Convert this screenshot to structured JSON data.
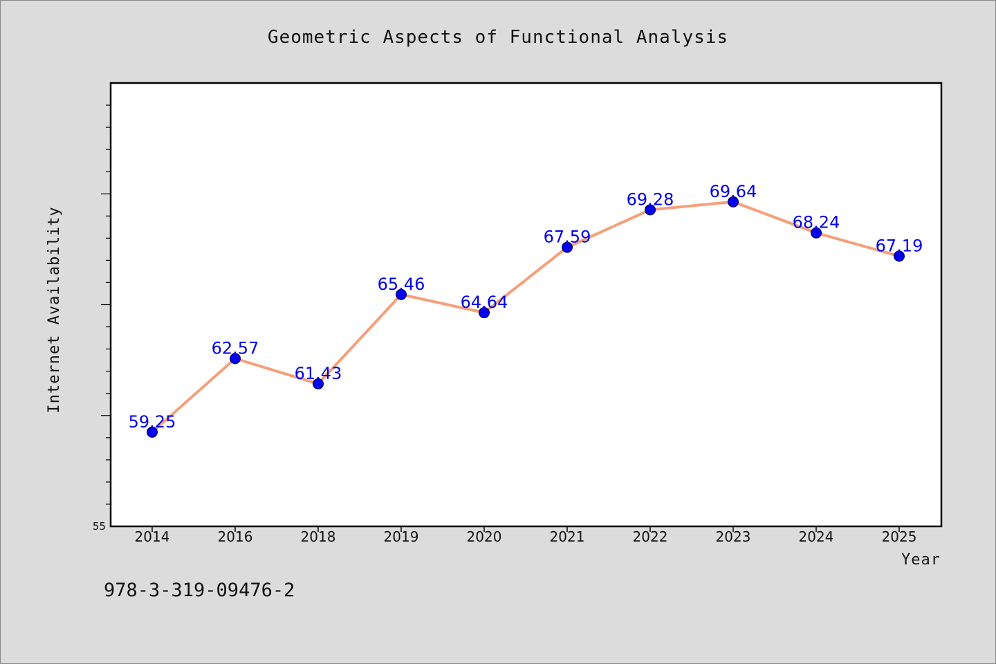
{
  "chart_data": {
    "type": "line",
    "title": "Geometric Aspects of Functional Analysis",
    "xlabel": "Year",
    "ylabel": "Internet Availability",
    "categories": [
      "2014",
      "2016",
      "2018",
      "2019",
      "2020",
      "2021",
      "2022",
      "2023",
      "2024",
      "2025"
    ],
    "series": [
      {
        "values": [
          59.25,
          62.57,
          61.43,
          65.46,
          64.64,
          67.59,
          69.28,
          69.64,
          68.24,
          67.19
        ],
        "labels": [
          "59.25",
          "62.57",
          "61.43",
          "65.46",
          "64.64",
          "67.59",
          "69.28",
          "69.64",
          "68.24",
          "67.19"
        ]
      }
    ],
    "ylim": [
      55,
      75
    ],
    "y_tick_labels": [
      "55"
    ],
    "grid": false,
    "colors": {
      "line": "#f4a07a",
      "marker": "#0000ee",
      "data_label": "#0000ee",
      "plot_background": "#ffffff",
      "page_background": "#dcdcdc"
    }
  },
  "footnote": "978-3-319-09476-2"
}
